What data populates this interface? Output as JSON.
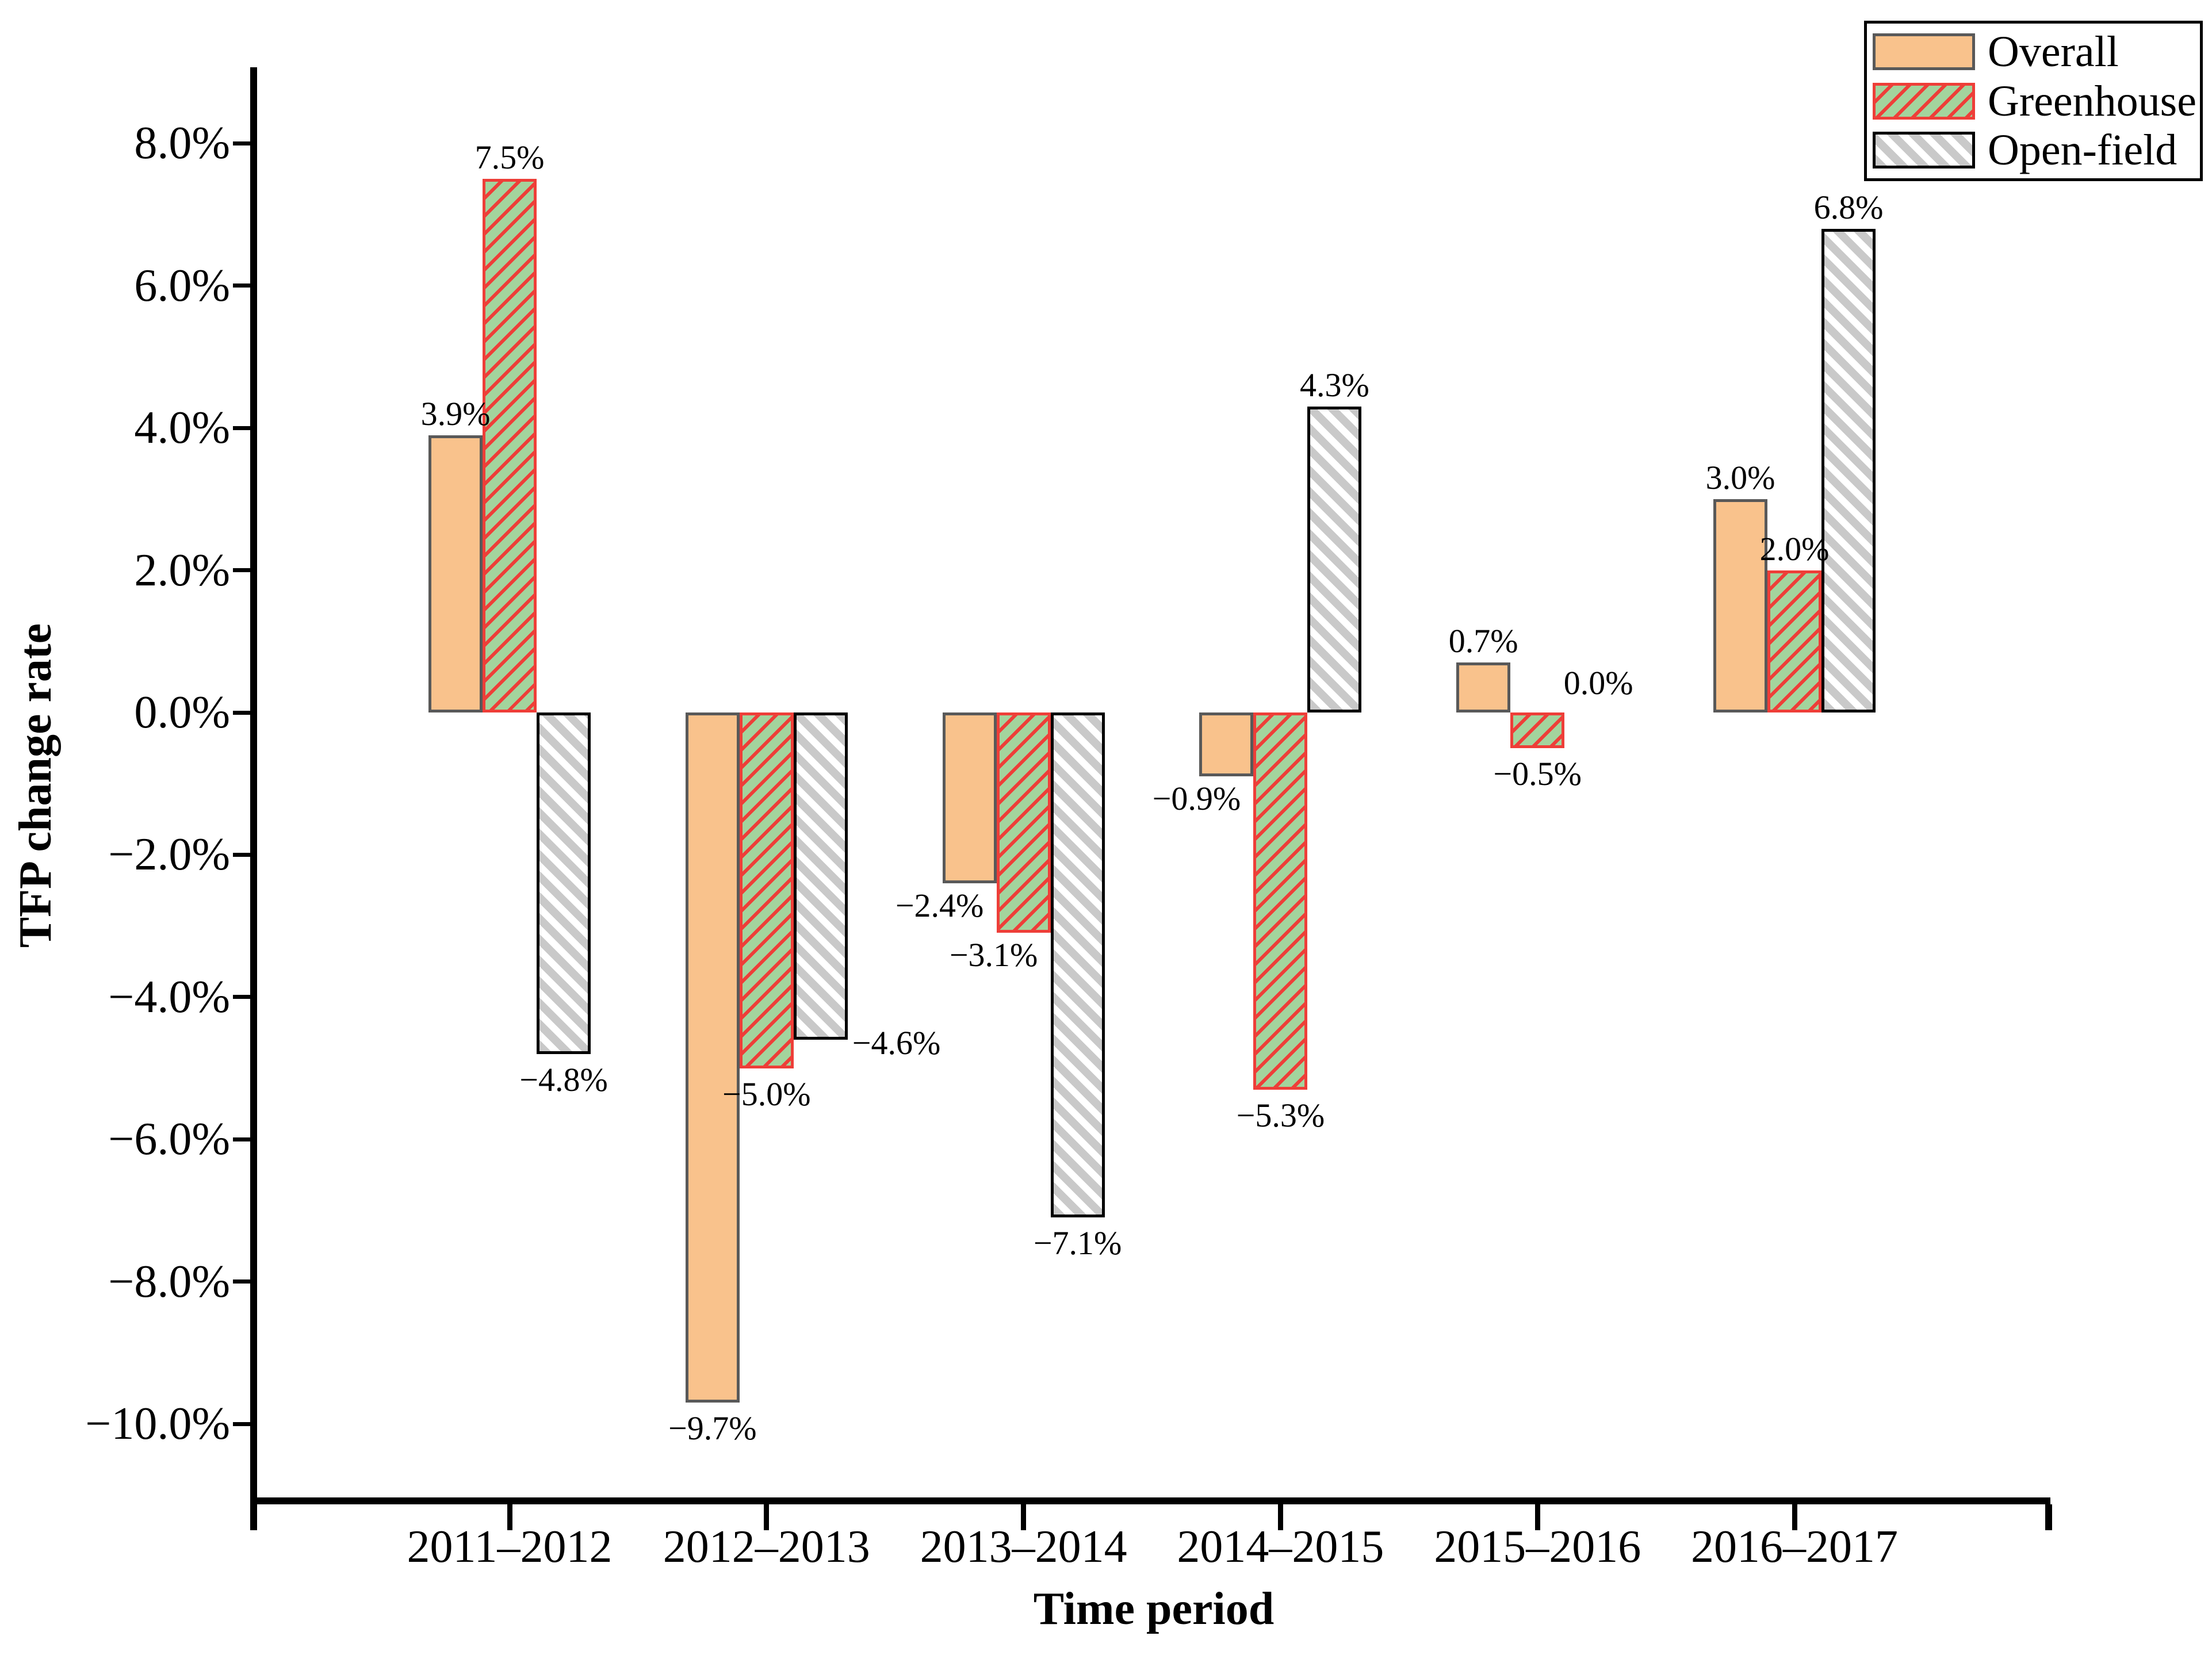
{
  "chart_data": {
    "type": "bar",
    "title": "",
    "xlabel": "Time period",
    "ylabel": "TFP change rate",
    "categories": [
      "2011–2012",
      "2012–2013",
      "2013–2014",
      "2014–2015",
      "2015–2016",
      "2016–2017"
    ],
    "series": [
      {
        "name": "Overall",
        "fill_color": "#F9C28C",
        "edge_color": "#595959",
        "hatch": "none",
        "values": [
          3.9,
          -9.7,
          -2.4,
          -0.9,
          0.7,
          3.0
        ],
        "labels": [
          "3.9%",
          "−9.7%",
          "−2.4%",
          "−0.9%",
          "0.7%",
          "3.0%"
        ],
        "label_pos": [
          "above",
          "below",
          "below_left",
          "below_left",
          "above",
          "above"
        ]
      },
      {
        "name": "Greenhouse",
        "fill_color": "#A3D49D",
        "edge_color": "#EE3E38",
        "hatch": "forward-diagonal-red",
        "values": [
          7.5,
          -5.0,
          -3.1,
          -5.3,
          -0.5,
          2.0
        ],
        "labels": [
          "7.5%",
          "−5.0%",
          "−3.1%",
          "−5.3%",
          "−0.5%",
          "2.0%"
        ],
        "label_pos": [
          "above",
          "below",
          "below_left",
          "below",
          "below",
          "above"
        ]
      },
      {
        "name": "Open-field",
        "fill_color": "#C9C9C9",
        "edge_color": "#000000",
        "hatch": "backward-diagonal-white",
        "values": [
          -4.8,
          -4.6,
          -7.1,
          4.3,
          0.0,
          6.8
        ],
        "labels": [
          "−4.8%",
          "−4.6%",
          "−7.1%",
          "4.3%",
          "0.0%",
          "6.8%"
        ],
        "label_pos": [
          "below",
          "right_of_end",
          "below",
          "above",
          "at_zero",
          "above"
        ]
      }
    ],
    "y_ticks": [
      {
        "value": 8,
        "label": "8.0%"
      },
      {
        "value": 6,
        "label": "6.0%"
      },
      {
        "value": 4,
        "label": "4.0%"
      },
      {
        "value": 2,
        "label": "2.0%"
      },
      {
        "value": 0,
        "label": "0.0%"
      },
      {
        "value": -2,
        "label": "−2.0%"
      },
      {
        "value": -4,
        "label": "−4.0%"
      },
      {
        "value": -6,
        "label": "−6.0%"
      },
      {
        "value": -8,
        "label": "−8.0%"
      },
      {
        "value": -10,
        "label": "−10.0%"
      }
    ],
    "ylim": [
      -11.0,
      9.1
    ],
    "grid": false,
    "legend_position": "top-right"
  }
}
